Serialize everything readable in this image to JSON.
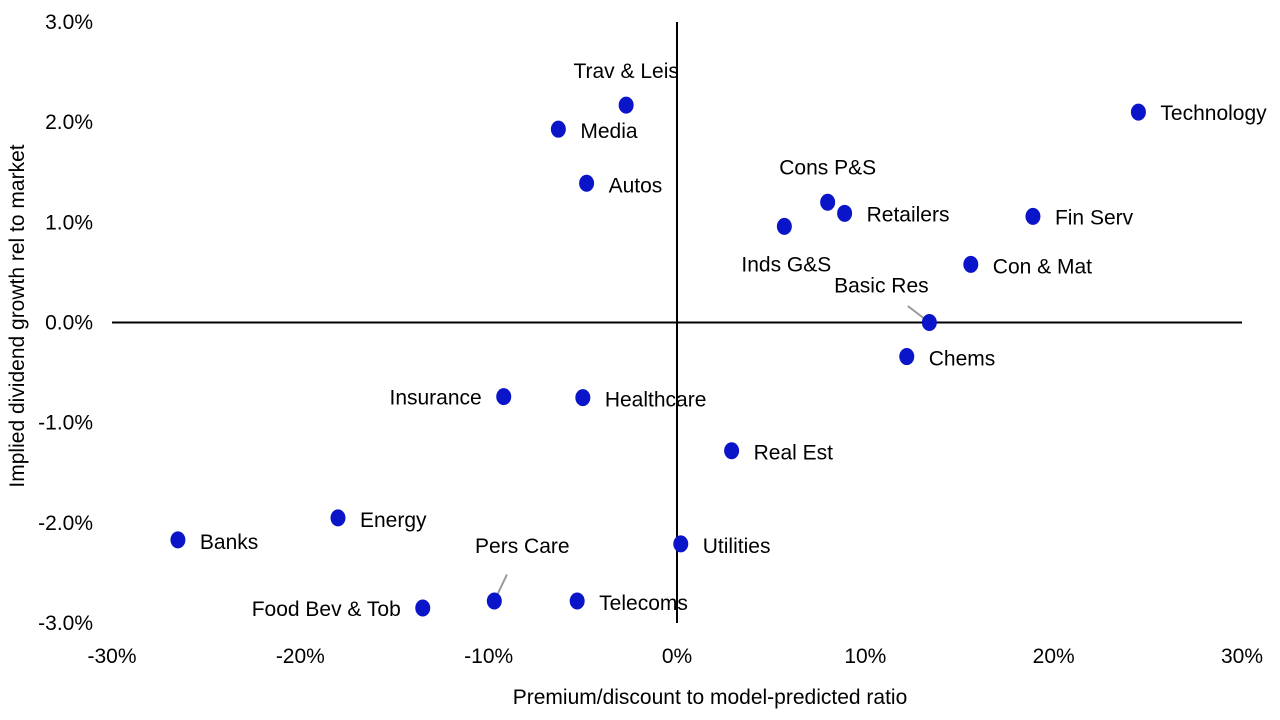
{
  "chart_data": {
    "type": "scatter",
    "xlabel": "Premium/discount to model-predicted ratio",
    "ylabel": "Implied dividend growth rel to market",
    "xlim": [
      -30,
      30
    ],
    "ylim": [
      -3,
      3
    ],
    "x_ticks": [
      "-30%",
      "-20%",
      "-10%",
      "0%",
      "10%",
      "20%",
      "30%"
    ],
    "y_ticks": [
      "3.0%",
      "2.0%",
      "1.0%",
      "0.0%",
      "-1.0%",
      "-2.0%",
      "-3.0%"
    ],
    "grid": false,
    "marker_color": "#0a14c8",
    "points": [
      {
        "label": "Technology",
        "x": 24.5,
        "y": 2.1
      },
      {
        "label": "Trav & Leis",
        "x": -2.7,
        "y": 2.17
      },
      {
        "label": "Media",
        "x": -6.3,
        "y": 1.93
      },
      {
        "label": "Autos",
        "x": -4.8,
        "y": 1.39
      },
      {
        "label": "Cons P&S",
        "x": 8.0,
        "y": 1.2
      },
      {
        "label": "Retailers",
        "x": 8.9,
        "y": 1.09
      },
      {
        "label": "Fin Serv",
        "x": 18.9,
        "y": 1.06
      },
      {
        "label": "Inds G&S",
        "x": 5.7,
        "y": 0.96
      },
      {
        "label": "Con & Mat",
        "x": 15.6,
        "y": 0.58
      },
      {
        "label": "Basic Res",
        "x": 13.4,
        "y": 0.0
      },
      {
        "label": "Chems",
        "x": 12.2,
        "y": -0.34
      },
      {
        "label": "Insurance",
        "x": -9.2,
        "y": -0.74
      },
      {
        "label": "Healthcare",
        "x": -5.0,
        "y": -0.75
      },
      {
        "label": "Real Est",
        "x": 2.9,
        "y": -1.28
      },
      {
        "label": "Energy",
        "x": -18.0,
        "y": -1.95
      },
      {
        "label": "Banks",
        "x": -26.5,
        "y": -2.17
      },
      {
        "label": "Utilities",
        "x": 0.2,
        "y": -2.21
      },
      {
        "label": "Pers Care",
        "x": -9.7,
        "y": -2.78
      },
      {
        "label": "Telecoms",
        "x": -5.3,
        "y": -2.78
      },
      {
        "label": "Food Bev & Tob",
        "x": -13.5,
        "y": -2.85
      }
    ]
  }
}
